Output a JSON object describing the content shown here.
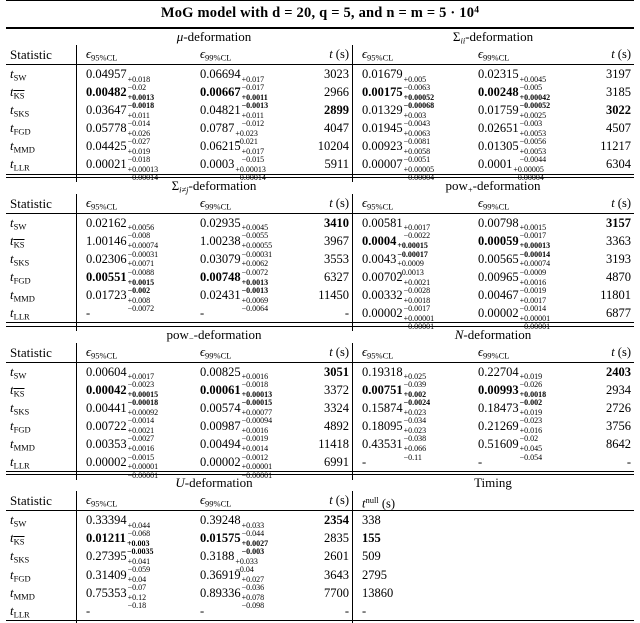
{
  "title": {
    "text": "MoG model with d = 20, q = 5, and n = m = 5 · 10",
    "sup": "4"
  },
  "headers": {
    "statistic": "Statistic",
    "eps": "ϵ",
    "e95sub": "95%CL",
    "e99sub": "99%CL",
    "t_main": "t",
    "t_rest": " (s)",
    "tnull_main": "t",
    "tnull_sup": "null",
    "tnull_rest": " (s)"
  },
  "row_labels": [
    {
      "main": "t",
      "sub": "SW"
    },
    {
      "main": "t",
      "sub": "KS",
      "over": true
    },
    {
      "main": "t",
      "sub": "SKS"
    },
    {
      "main": "t",
      "sub": "FGD"
    },
    {
      "main": "t",
      "sub": "MMD"
    },
    {
      "main": "t",
      "sub": "LLR"
    }
  ],
  "sections": [
    {
      "left": {
        "title": {
          "main": "μ",
          "mc": "it",
          "rest": "-deformation"
        },
        "rows": [
          {
            "e95": {
              "v": "0.04957",
              "p": "+0.018",
              "m": "−0.02"
            },
            "e99": {
              "v": "0.06694",
              "p": "+0.017",
              "m": "−0.017"
            },
            "t": {
              "v": "3023"
            }
          },
          {
            "e95": {
              "v": "0.00482",
              "p": "+0.0013",
              "m": "−0.0018",
              "b": true
            },
            "e99": {
              "v": "0.00667",
              "p": "+0.0011",
              "m": "−0.0013",
              "b": true
            },
            "t": {
              "v": "2966"
            }
          },
          {
            "e95": {
              "v": "0.03647",
              "p": "+0.011",
              "m": "−0.014"
            },
            "e99": {
              "v": "0.04821",
              "p": "+0.011",
              "m": "−0.012"
            },
            "t": {
              "v": "2899",
              "b": true
            }
          },
          {
            "e95": {
              "v": "0.05778",
              "p": "+0.026",
              "m": "−0.027"
            },
            "e99": {
              "v": "0.0787",
              "p": "+0.023",
              "m": "−0.021"
            },
            "t": {
              "v": "4047"
            }
          },
          {
            "e95": {
              "v": "0.04425",
              "p": "+0.019",
              "m": "−0.018"
            },
            "e99": {
              "v": "0.06215",
              "p": "+0.017",
              "m": "−0.015"
            },
            "t": {
              "v": "10204"
            }
          },
          {
            "e95": {
              "v": "0.00021",
              "p": "+0.00013",
              "m": "−0.00014"
            },
            "e99": {
              "v": "0.0003",
              "p": "+0.00013",
              "m": "−0.00014"
            },
            "t": {
              "v": "5911"
            }
          }
        ]
      },
      "right": {
        "title": {
          "main": "Σ",
          "sub": "ii",
          "rest": "-deformation"
        },
        "rows": [
          {
            "e95": {
              "v": "0.01679",
              "p": "+0.005",
              "m": "−0.0063"
            },
            "e99": {
              "v": "0.02315",
              "p": "+0.0045",
              "m": "−0.005"
            },
            "t": {
              "v": "3197"
            }
          },
          {
            "e95": {
              "v": "0.00175",
              "p": "+0.00052",
              "m": "−0.00068",
              "b": true
            },
            "e99": {
              "v": "0.00248",
              "p": "+0.00042",
              "m": "−0.00052",
              "b": true
            },
            "t": {
              "v": "3185"
            }
          },
          {
            "e95": {
              "v": "0.01329",
              "p": "+0.003",
              "m": "−0.0043"
            },
            "e99": {
              "v": "0.01759",
              "p": "+0.0025",
              "m": "−0.003"
            },
            "t": {
              "v": "3022",
              "b": true
            }
          },
          {
            "e95": {
              "v": "0.01945",
              "p": "+0.0063",
              "m": "−0.0081"
            },
            "e99": {
              "v": "0.02651",
              "p": "+0.0053",
              "m": "−0.0056"
            },
            "t": {
              "v": "4507"
            }
          },
          {
            "e95": {
              "v": "0.00923",
              "p": "+0.0058",
              "m": "−0.0051"
            },
            "e99": {
              "v": "0.01305",
              "p": "+0.0053",
              "m": "−0.0044"
            },
            "t": {
              "v": "11217"
            }
          },
          {
            "e95": {
              "v": "0.00007",
              "p": "+0.00005",
              "m": "−0.00004"
            },
            "e99": {
              "v": "0.0001",
              "p": "+0.00005",
              "m": "−0.00004"
            },
            "t": {
              "v": "6304"
            }
          }
        ]
      }
    },
    {
      "left": {
        "title": {
          "main": "Σ",
          "sub": "i≠j",
          "rest": "-deformation"
        },
        "rows": [
          {
            "e95": {
              "v": "0.02162",
              "p": "+0.0056",
              "m": "−0.008"
            },
            "e99": {
              "v": "0.02935",
              "p": "+0.0045",
              "m": "−0.0055"
            },
            "t": {
              "v": "3410",
              "b": true
            }
          },
          {
            "e95": {
              "v": "1.00146",
              "p": "+0.00074",
              "m": "−0.00031"
            },
            "e99": {
              "v": "1.00238",
              "p": "+0.00055",
              "m": "−0.00031"
            },
            "t": {
              "v": "3967"
            }
          },
          {
            "e95": {
              "v": "0.02306",
              "p": "+0.0071",
              "m": "−0.0088"
            },
            "e99": {
              "v": "0.03079",
              "p": "+0.0062",
              "m": "−0.0072"
            },
            "t": {
              "v": "3553"
            }
          },
          {
            "e95": {
              "v": "0.00551",
              "p": "+0.0015",
              "m": "−0.002",
              "b": true
            },
            "e99": {
              "v": "0.00748",
              "p": "+0.0013",
              "m": "−0.0013",
              "b": true
            },
            "t": {
              "v": "6327"
            }
          },
          {
            "e95": {
              "v": "0.01723",
              "p": "+0.008",
              "m": "−0.0072"
            },
            "e99": {
              "v": "0.02431",
              "p": "+0.0069",
              "m": "−0.0064"
            },
            "t": {
              "v": "11450"
            }
          },
          {
            "e95": {
              "v": "-"
            },
            "e99": {
              "v": "-"
            },
            "t": {
              "v": "-"
            }
          }
        ]
      },
      "right": {
        "title": {
          "main": "pow",
          "sub": "+",
          "rest": "-deformation"
        },
        "rows": [
          {
            "e95": {
              "v": "0.00581",
              "p": "+0.0017",
              "m": "−0.0022"
            },
            "e99": {
              "v": "0.00798",
              "p": "+0.0015",
              "m": "−0.0017"
            },
            "t": {
              "v": "3157",
              "b": true
            }
          },
          {
            "e95": {
              "v": "0.0004",
              "p": "+0.00015",
              "m": "−0.00017",
              "b": true
            },
            "e99": {
              "v": "0.00059",
              "p": "+0.00013",
              "m": "−0.00014",
              "b": true
            },
            "t": {
              "v": "3363"
            }
          },
          {
            "e95": {
              "v": "0.0043",
              "p": "+0.0009",
              "m": "−0.0013"
            },
            "e99": {
              "v": "0.00565",
              "p": "+0.00074",
              "m": "−0.0009"
            },
            "t": {
              "v": "3193"
            }
          },
          {
            "e95": {
              "v": "0.00702",
              "p": "+0.0021",
              "m": "−0.0028"
            },
            "e99": {
              "v": "0.00965",
              "p": "+0.0016",
              "m": "−0.0019"
            },
            "t": {
              "v": "4870"
            }
          },
          {
            "e95": {
              "v": "0.00332",
              "p": "+0.0018",
              "m": "−0.0017"
            },
            "e99": {
              "v": "0.00467",
              "p": "+0.0017",
              "m": "−0.0014"
            },
            "t": {
              "v": "11801"
            }
          },
          {
            "e95": {
              "v": "0.00002",
              "p": "+0.00001",
              "m": "−0.00001"
            },
            "e99": {
              "v": "0.00002",
              "p": "+0.00001",
              "m": "−0.00001"
            },
            "t": {
              "v": "6877"
            }
          }
        ]
      }
    },
    {
      "left": {
        "title": {
          "main": "pow",
          "sub": "−",
          "rest": "-deformation"
        },
        "rows": [
          {
            "e95": {
              "v": "0.00604",
              "p": "+0.0017",
              "m": "−0.0023"
            },
            "e99": {
              "v": "0.00825",
              "p": "+0.0016",
              "m": "−0.0018"
            },
            "t": {
              "v": "3051",
              "b": true
            }
          },
          {
            "e95": {
              "v": "0.00042",
              "p": "+0.00015",
              "m": "−0.00018",
              "b": true
            },
            "e99": {
              "v": "0.00061",
              "p": "+0.00013",
              "m": "−0.00015",
              "b": true
            },
            "t": {
              "v": "3372"
            }
          },
          {
            "e95": {
              "v": "0.00441",
              "p": "+0.00092",
              "m": "−0.0014"
            },
            "e99": {
              "v": "0.00574",
              "p": "+0.00077",
              "m": "−0.00094"
            },
            "t": {
              "v": "3324"
            }
          },
          {
            "e95": {
              "v": "0.00722",
              "p": "+0.0021",
              "m": "−0.0027"
            },
            "e99": {
              "v": "0.00987",
              "p": "+0.0016",
              "m": "−0.0019"
            },
            "t": {
              "v": "4892"
            }
          },
          {
            "e95": {
              "v": "0.00353",
              "p": "+0.0016",
              "m": "−0.0015"
            },
            "e99": {
              "v": "0.00494",
              "p": "+0.0014",
              "m": "−0.0012"
            },
            "t": {
              "v": "11418"
            }
          },
          {
            "e95": {
              "v": "0.00002",
              "p": "+0.00001",
              "m": "−0.00001"
            },
            "e99": {
              "v": "0.00002",
              "p": "+0.00001",
              "m": "−0.00001"
            },
            "t": {
              "v": "6991"
            }
          }
        ]
      },
      "right": {
        "title": {
          "main": "N",
          "mc": "cal",
          "rest": "-deformation"
        },
        "rows": [
          {
            "e95": {
              "v": "0.19318",
              "p": "+0.025",
              "m": "−0.039"
            },
            "e99": {
              "v": "0.22704",
              "p": "+0.019",
              "m": "−0.026"
            },
            "t": {
              "v": "2403",
              "b": true
            }
          },
          {
            "e95": {
              "v": "0.00751",
              "p": "+0.002",
              "m": "−0.0024",
              "b": true
            },
            "e99": {
              "v": "0.00993",
              "p": "+0.0018",
              "m": "−0.002",
              "b": true
            },
            "t": {
              "v": "2934"
            }
          },
          {
            "e95": {
              "v": "0.15874",
              "p": "+0.023",
              "m": "−0.034"
            },
            "e99": {
              "v": "0.18473",
              "p": "+0.019",
              "m": "−0.023"
            },
            "t": {
              "v": "2726"
            }
          },
          {
            "e95": {
              "v": "0.18095",
              "p": "+0.023",
              "m": "−0.038"
            },
            "e99": {
              "v": "0.21269",
              "p": "+0.016",
              "m": "−0.02"
            },
            "t": {
              "v": "3756"
            }
          },
          {
            "e95": {
              "v": "0.43531",
              "p": "+0.066",
              "m": "−0.11"
            },
            "e99": {
              "v": "0.51609",
              "p": "+0.045",
              "m": "−0.054"
            },
            "t": {
              "v": "8642"
            }
          },
          {
            "e95": {
              "v": "-"
            },
            "e99": {
              "v": "-"
            },
            "t": {
              "v": "-"
            }
          }
        ]
      }
    },
    {
      "left": {
        "title": {
          "main": "U",
          "mc": "cal",
          "rest": "-deformation"
        },
        "rows": [
          {
            "e95": {
              "v": "0.33394",
              "p": "+0.044",
              "m": "−0.068"
            },
            "e99": {
              "v": "0.39248",
              "p": "+0.033",
              "m": "−0.044"
            },
            "t": {
              "v": "2354",
              "b": true
            }
          },
          {
            "e95": {
              "v": "0.01211",
              "p": "+0.003",
              "m": "−0.0035",
              "b": true
            },
            "e99": {
              "v": "0.01575",
              "p": "+0.0027",
              "m": "−0.003",
              "b": true
            },
            "t": {
              "v": "2835"
            }
          },
          {
            "e95": {
              "v": "0.27395",
              "p": "+0.041",
              "m": "−0.059"
            },
            "e99": {
              "v": "0.3188",
              "p": "+0.033",
              "m": "−0.04"
            },
            "t": {
              "v": "2601"
            }
          },
          {
            "e95": {
              "v": "0.31409",
              "p": "+0.04",
              "m": "−0.07"
            },
            "e99": {
              "v": "0.36919",
              "p": "+0.027",
              "m": "−0.036"
            },
            "t": {
              "v": "3643"
            }
          },
          {
            "e95": {
              "v": "0.75353",
              "p": "+0.12",
              "m": "−0.18"
            },
            "e99": {
              "v": "0.89336",
              "p": "+0.078",
              "m": "−0.098"
            },
            "t": {
              "v": "7700"
            }
          },
          {
            "e95": {
              "v": "-"
            },
            "e99": {
              "v": "-"
            },
            "t": {
              "v": "-"
            }
          }
        ]
      },
      "right": {
        "title": {
          "main": "Timing"
        },
        "timing": true,
        "rows": [
          {
            "tnull": {
              "v": "338"
            }
          },
          {
            "tnull": {
              "v": "155",
              "b": true
            }
          },
          {
            "tnull": {
              "v": "509"
            }
          },
          {
            "tnull": {
              "v": "2795"
            }
          },
          {
            "tnull": {
              "v": "13860"
            }
          },
          {
            "tnull": {
              "v": "-"
            }
          }
        ]
      }
    }
  ]
}
